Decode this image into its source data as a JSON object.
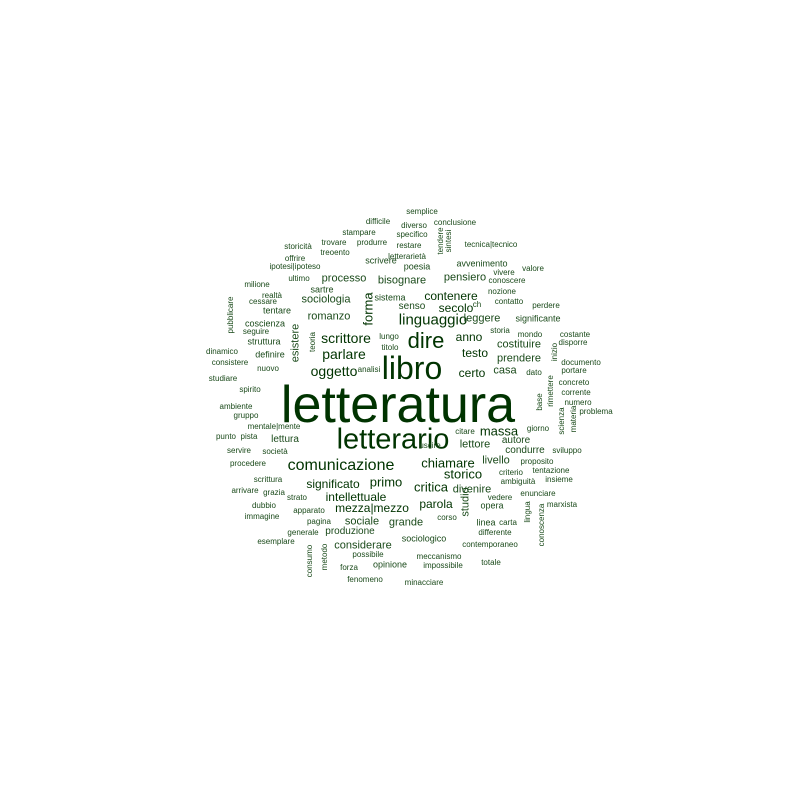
{
  "colors": {
    "background": "#ffffff",
    "large_words": "#003300",
    "small_words": "#1a4a1a"
  },
  "words": [
    {
      "text": "letteratura",
      "weight": 1.0
    },
    {
      "text": "libro",
      "weight": 0.62
    },
    {
      "text": "letterario",
      "weight": 0.55
    },
    {
      "text": "dire",
      "weight": 0.42
    },
    {
      "text": "comunicazione",
      "weight": 0.36
    },
    {
      "text": "linguaggio",
      "weight": 0.3
    },
    {
      "text": "scrittore",
      "weight": 0.28
    },
    {
      "text": "parlare",
      "weight": 0.27
    },
    {
      "text": "oggetto",
      "weight": 0.27
    },
    {
      "text": "chiamare",
      "weight": 0.26
    },
    {
      "text": "massa",
      "weight": 0.26
    },
    {
      "text": "primo",
      "weight": 0.26
    },
    {
      "text": "critica",
      "weight": 0.24
    },
    {
      "text": "forma",
      "weight": 0.24
    },
    {
      "text": "storico",
      "weight": 0.24
    },
    {
      "text": "contenere",
      "weight": 0.23
    },
    {
      "text": "secolo",
      "weight": 0.23
    },
    {
      "text": "anno",
      "weight": 0.22
    },
    {
      "text": "testo",
      "weight": 0.22
    },
    {
      "text": "certo",
      "weight": 0.22
    },
    {
      "text": "intellettuale",
      "weight": 0.21
    },
    {
      "text": "mezza|mezzo",
      "weight": 0.21
    },
    {
      "text": "parola",
      "weight": 0.21
    },
    {
      "text": "significato",
      "weight": 0.21
    },
    {
      "text": "lettore",
      "weight": 0.2
    },
    {
      "text": "prendere",
      "weight": 0.19
    },
    {
      "text": "bisognare",
      "weight": 0.19
    },
    {
      "text": "sociologia",
      "weight": 0.19
    },
    {
      "text": "processo",
      "weight": 0.18
    },
    {
      "text": "romanzo",
      "weight": 0.18
    },
    {
      "text": "leggere",
      "weight": 0.18
    },
    {
      "text": "pensiero",
      "weight": 0.18
    },
    {
      "text": "esistere",
      "weight": 0.18
    },
    {
      "text": "studio",
      "weight": 0.18
    },
    {
      "text": "sociale",
      "weight": 0.18
    },
    {
      "text": "grande",
      "weight": 0.18
    },
    {
      "text": "considerare",
      "weight": 0.18
    },
    {
      "text": "divenire",
      "weight": 0.17
    },
    {
      "text": "livello",
      "weight": 0.17
    },
    {
      "text": "casa",
      "weight": 0.17
    },
    {
      "text": "costituire",
      "weight": 0.17
    },
    {
      "text": "lettura",
      "weight": 0.17
    },
    {
      "text": "produzione",
      "weight": 0.17
    },
    {
      "text": "senso",
      "weight": 0.16
    },
    {
      "text": "condurre",
      "weight": 0.16
    },
    {
      "text": "autore",
      "weight": 0.16
    },
    {
      "text": "poesia",
      "weight": 0.15
    },
    {
      "text": "scrivere",
      "weight": 0.15
    },
    {
      "text": "avvenimento",
      "weight": 0.15
    },
    {
      "text": "sistema",
      "weight": 0.15
    },
    {
      "text": "sartre",
      "weight": 0.15
    },
    {
      "text": "coscienza",
      "weight": 0.15
    },
    {
      "text": "struttura",
      "weight": 0.15
    },
    {
      "text": "definire",
      "weight": 0.15
    },
    {
      "text": "tentare",
      "weight": 0.15
    },
    {
      "text": "linea",
      "weight": 0.15
    },
    {
      "text": "sociologico",
      "weight": 0.15
    },
    {
      "text": "opinione",
      "weight": 0.15
    },
    {
      "text": "opera",
      "weight": 0.15
    },
    {
      "text": "significante",
      "weight": 0.15
    },
    {
      "text": "nozione",
      "weight": 0.14
    },
    {
      "text": "contatto",
      "weight": 0.14
    },
    {
      "text": "storia",
      "weight": 0.14
    },
    {
      "text": "mondo",
      "weight": 0.14
    },
    {
      "text": "teoria",
      "weight": 0.14
    },
    {
      "text": "società",
      "weight": 0.14
    },
    {
      "text": "mentale|mente",
      "weight": 0.14
    },
    {
      "text": "seguire",
      "weight": 0.14
    },
    {
      "text": "nuovo",
      "weight": 0.14
    },
    {
      "text": "pagina",
      "weight": 0.14
    },
    {
      "text": "apparato",
      "weight": 0.14
    },
    {
      "text": "strato",
      "weight": 0.14
    },
    {
      "text": "ambiguità",
      "weight": 0.14
    },
    {
      "text": "criterio",
      "weight": 0.14
    },
    {
      "text": "differente",
      "weight": 0.14
    },
    {
      "text": "contemporaneo",
      "weight": 0.14
    },
    {
      "text": "impossibile",
      "weight": 0.14
    },
    {
      "text": "meccanismo",
      "weight": 0.14
    },
    {
      "text": "possibile",
      "weight": 0.14
    },
    {
      "text": "vedere",
      "weight": 0.14
    },
    {
      "text": "enunciare",
      "weight": 0.14
    },
    {
      "text": "marxista",
      "weight": 0.14
    },
    {
      "text": "stampare",
      "weight": 0.13
    },
    {
      "text": "diverso",
      "weight": 0.13
    },
    {
      "text": "specifico",
      "weight": 0.13
    },
    {
      "text": "difficile",
      "weight": 0.13
    },
    {
      "text": "semplice",
      "weight": 0.13
    },
    {
      "text": "conclusione",
      "weight": 0.13
    },
    {
      "text": "produrre",
      "weight": 0.13
    },
    {
      "text": "trovare",
      "weight": 0.13
    },
    {
      "text": "storicità",
      "weight": 0.13
    },
    {
      "text": "restare",
      "weight": 0.13
    },
    {
      "text": "tendere",
      "weight": 0.13
    },
    {
      "text": "sintesi",
      "weight": 0.13
    },
    {
      "text": "tecnica|tecnico",
      "weight": 0.13
    },
    {
      "text": "letterarietà",
      "weight": 0.13
    },
    {
      "text": "treoento",
      "weight": 0.13
    },
    {
      "text": "offrire",
      "weight": 0.13
    },
    {
      "text": "ipotesi|ipoteso",
      "weight": 0.13
    },
    {
      "text": "vivere",
      "weight": 0.13
    },
    {
      "text": "valore",
      "weight": 0.13
    },
    {
      "text": "conoscere",
      "weight": 0.13
    },
    {
      "text": "ultimo",
      "weight": 0.13
    },
    {
      "text": "milione",
      "weight": 0.13
    },
    {
      "text": "realtà",
      "weight": 0.13
    },
    {
      "text": "cessare",
      "weight": 0.13
    },
    {
      "text": "pubblicare",
      "weight": 0.13
    },
    {
      "text": "ch",
      "weight": 0.13
    },
    {
      "text": "perdere",
      "weight": 0.13
    },
    {
      "text": "lungo",
      "weight": 0.13
    },
    {
      "text": "titolo",
      "weight": 0.13
    },
    {
      "text": "costante",
      "weight": 0.13
    },
    {
      "text": "inizio",
      "weight": 0.13
    },
    {
      "text": "disporre",
      "weight": 0.13
    },
    {
      "text": "dinamico",
      "weight": 0.13
    },
    {
      "text": "consistere",
      "weight": 0.13
    },
    {
      "text": "analisi",
      "weight": 0.13
    },
    {
      "text": "dato",
      "weight": 0.13
    },
    {
      "text": "documento",
      "weight": 0.13
    },
    {
      "text": "portare",
      "weight": 0.13
    },
    {
      "text": "studiare",
      "weight": 0.13
    },
    {
      "text": "rimettere",
      "weight": 0.13
    },
    {
      "text": "concreto",
      "weight": 0.13
    },
    {
      "text": "corrente",
      "weight": 0.13
    },
    {
      "text": "numero",
      "weight": 0.13
    },
    {
      "text": "spirito",
      "weight": 0.13
    },
    {
      "text": "base",
      "weight": 0.13
    },
    {
      "text": "gruppo",
      "weight": 0.13
    },
    {
      "text": "ambiente",
      "weight": 0.13
    },
    {
      "text": "materia",
      "weight": 0.13
    },
    {
      "text": "problema",
      "weight": 0.13
    },
    {
      "text": "scienza",
      "weight": 0.13
    },
    {
      "text": "punto",
      "weight": 0.13
    },
    {
      "text": "pista",
      "weight": 0.13
    },
    {
      "text": "citare",
      "weight": 0.13
    },
    {
      "text": "giorno",
      "weight": 0.13
    },
    {
      "text": "servire",
      "weight": 0.13
    },
    {
      "text": "uscire",
      "weight": 0.13
    },
    {
      "text": "sviluppo",
      "weight": 0.13
    },
    {
      "text": "procedere",
      "weight": 0.13
    },
    {
      "text": "proposito",
      "weight": 0.13
    },
    {
      "text": "tentazione",
      "weight": 0.13
    },
    {
      "text": "scrittura",
      "weight": 0.13
    },
    {
      "text": "insieme",
      "weight": 0.13
    },
    {
      "text": "arrivare",
      "weight": 0.13
    },
    {
      "text": "grazia",
      "weight": 0.13
    },
    {
      "text": "dubbio",
      "weight": 0.13
    },
    {
      "text": "immagine",
      "weight": 0.13
    },
    {
      "text": "carta",
      "weight": 0.13
    },
    {
      "text": "lingua",
      "weight": 0.13
    },
    {
      "text": "conoscenza",
      "weight": 0.13
    },
    {
      "text": "corso",
      "weight": 0.13
    },
    {
      "text": "generale",
      "weight": 0.13
    },
    {
      "text": "esemplare",
      "weight": 0.13
    },
    {
      "text": "consumo",
      "weight": 0.13
    },
    {
      "text": "metodo",
      "weight": 0.13
    },
    {
      "text": "forza",
      "weight": 0.13
    },
    {
      "text": "fenomeno",
      "weight": 0.13
    },
    {
      "text": "minacciare",
      "weight": 0.13
    },
    {
      "text": "totale",
      "weight": 0.13
    }
  ]
}
